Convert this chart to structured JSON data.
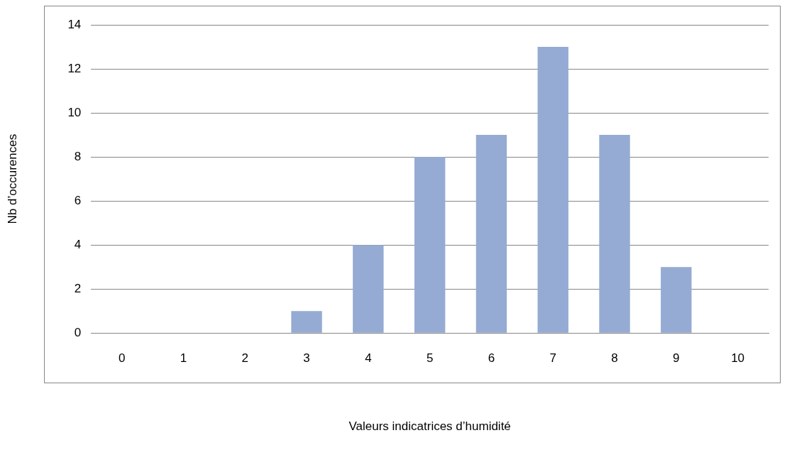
{
  "chart_data": {
    "type": "bar",
    "xlabel": "Valeurs indicatrices d’humidité",
    "ylabel": "Nb d’occurences",
    "categories": [
      "0",
      "1",
      "2",
      "3",
      "4",
      "5",
      "6",
      "7",
      "8",
      "9",
      "10"
    ],
    "values": [
      0,
      0,
      0,
      1,
      4,
      8,
      9,
      13,
      9,
      3,
      0
    ],
    "color": "#95abd3",
    "ylim": [
      0,
      14
    ],
    "yticks": [
      0,
      2,
      4,
      6,
      8,
      10,
      12,
      14
    ],
    "grid": "y",
    "legend": false
  }
}
